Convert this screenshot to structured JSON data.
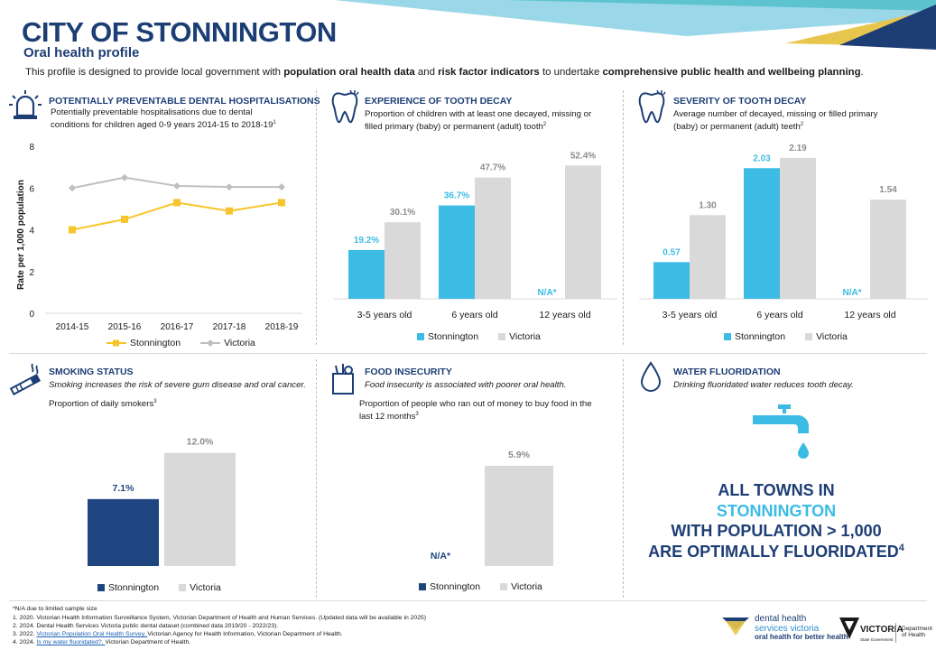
{
  "header": {
    "title": "CITY OF STONNINGTON",
    "subtitle": "Oral health profile",
    "intro_1": "This profile is designed to provide local government with ",
    "intro_b1": "population oral health data",
    "intro_2": " and ",
    "intro_b2": "risk factor indicators",
    "intro_3": " to undertake ",
    "intro_b3": "comprehensive public health and wellbeing planning",
    "intro_4": "."
  },
  "colors": {
    "navy": "#1d3e75",
    "stonnington_blue": "#3cbce4",
    "victoria_grey": "#d9d9d9",
    "line_yellow": "#f7c52b",
    "line_grey": "#bfbfbf",
    "smoking_navy": "#1f4580"
  },
  "hospitalisations": {
    "icon": "siren-icon",
    "title": "POTENTIALLY PREVENTABLE DENTAL HOSPITALISATIONS",
    "desc_line1": "Potentially preventable hospitalisations due to dental",
    "desc_line2": "conditions for children aged 0-9 years 2014-15 to 2018-19",
    "desc_sup": "1"
  },
  "tooth_decay": {
    "icon": "tooth-icon",
    "title": "EXPERIENCE OF TOOTH DECAY",
    "desc_line1": "Proportion of children with at least one decayed, missing or",
    "desc_line2": "filled primary (baby) or permanent (adult) tooth",
    "desc_sup": "2"
  },
  "decay_severity": {
    "icon": "tooth-icon",
    "title": "SEVERITY OF TOOTH DECAY",
    "desc_line1": "Average number of decayed, missing or filled primary",
    "desc_line2": "(baby) or permanent (adult) teeth",
    "desc_sup": "2"
  },
  "smoking": {
    "icon": "cigarette-icon",
    "title": "SMOKING STATUS",
    "desc": "Smoking increases the risk of severe gum disease and oral cancer.",
    "measure": "Proportion of daily smokers",
    "measure_sup": "3"
  },
  "food": {
    "icon": "grocery-bag-icon",
    "title": "FOOD INSECURITY",
    "desc": "Food insecurity is associated with poorer oral health.",
    "measure_line1": "Proportion of people who ran out of money to buy food in the",
    "measure_line2": "last 12 months",
    "measure_sup": "3"
  },
  "water": {
    "icon": "water-drop-icon",
    "title": "WATER FLUORIDATION",
    "desc": "Drinking fluoridated water reduces tooth decay.",
    "tap_icon": "tap-icon",
    "statement_line1": "ALL TOWNS IN",
    "statement_line2": "STONNINGTON",
    "statement_line3": "WITH POPULATION > 1,000",
    "statement_line4": "ARE OPTIMALLY FLUORIDATED",
    "statement_sup": "4"
  },
  "chart_data": [
    {
      "id": "hospitalisations",
      "type": "line",
      "categories": [
        "2014-15",
        "2015-16",
        "2016-17",
        "2017-18",
        "2018-19"
      ],
      "series": [
        {
          "name": "Stonnington",
          "values": [
            4.0,
            4.5,
            5.3,
            4.9,
            5.3
          ]
        },
        {
          "name": "Victoria",
          "values": [
            6.0,
            6.5,
            6.1,
            6.05,
            6.05
          ]
        }
      ],
      "ylabel": "Rate per 1,000 population",
      "ylim": [
        0,
        8
      ],
      "yticks": [
        "0",
        "2",
        "4",
        "6",
        "8"
      ],
      "legend": [
        "Stonnington",
        "Victoria"
      ]
    },
    {
      "id": "tooth_decay",
      "type": "bar",
      "categories": [
        "3-5 years old",
        "6 years old",
        "12 years old"
      ],
      "series": [
        {
          "name": "Stonnington",
          "values": [
            19.2,
            36.7,
            null
          ],
          "labels": [
            "19.2%",
            "36.7%",
            "N/A*"
          ]
        },
        {
          "name": "Victoria",
          "values": [
            30.1,
            47.7,
            52.4
          ],
          "labels": [
            "30.1%",
            "47.7%",
            "52.4%"
          ]
        }
      ],
      "ylim": [
        0,
        55
      ],
      "legend": [
        "Stonnington",
        "Victoria"
      ]
    },
    {
      "id": "decay_severity",
      "type": "bar",
      "categories": [
        "3-5 years old",
        "6 years old",
        "12 years old"
      ],
      "series": [
        {
          "name": "Stonnington",
          "values": [
            0.57,
            2.03,
            null
          ],
          "labels": [
            "0.57",
            "2.03",
            "N/A*"
          ]
        },
        {
          "name": "Victoria",
          "values": [
            1.3,
            2.19,
            1.54
          ],
          "labels": [
            "1.30",
            "2.19",
            "1.54"
          ]
        }
      ],
      "ylim": [
        0,
        2.3
      ],
      "legend": [
        "Stonnington",
        "Victoria"
      ]
    },
    {
      "id": "smoking",
      "type": "bar",
      "categories": [
        "Stonnington",
        "Victoria"
      ],
      "values": [
        7.1,
        12.0
      ],
      "labels": [
        "7.1%",
        "12.0%"
      ],
      "ylim": [
        0,
        13.5
      ],
      "legend": [
        "Stonnington",
        "Victoria"
      ]
    },
    {
      "id": "food",
      "type": "bar",
      "categories": [
        "Stonnington",
        "Victoria"
      ],
      "values": [
        null,
        5.9
      ],
      "labels": [
        "N/A*",
        "5.9%"
      ],
      "ylim": [
        0,
        6.8
      ],
      "legend": [
        "Stonnington",
        "Victoria"
      ]
    }
  ],
  "footnotes": {
    "na": "*N/A due to limited sample size",
    "f1": "1. 2020. Victorian Health Information Surveillance System, Victorian Department of Health and Human Services. (Updated data will be available in 2025)",
    "f2": "2. 2024. Dental Health Services Victoria public dental dataset (combined data 2019/20 - 2022/23).",
    "f3_pre": "3. 2022. ",
    "f3_link": "Victorian Population Oral Health Survey. ",
    "f3_post": "Victorian Agency for Health Information, Victorian Department of Health.",
    "f4_pre": "4. 2024. ",
    "f4_link": "Is my water fluoridated?. ",
    "f4_post": "Victorian Department of Health."
  },
  "branding": {
    "dhsv_line1": "dental health",
    "dhsv_line2": "services victoria",
    "dhsv_tagline": "oral health for better health",
    "vic_logo": "VICTORIA",
    "vic_sub": "State Government",
    "doh_line1": "Department",
    "doh_line2": "of Health"
  }
}
